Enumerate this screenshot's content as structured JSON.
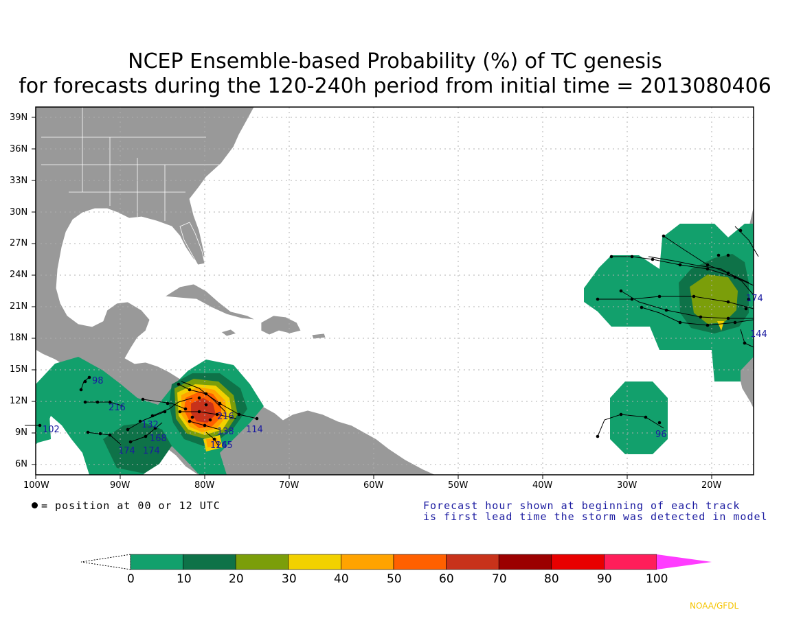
{
  "title": {
    "line1": "NCEP Ensemble-based Probability (%) of TC genesis",
    "line2": "for forecasts during the 120-240h period from initial time = 2013080406"
  },
  "map": {
    "lat_labels": [
      "39N",
      "36N",
      "33N",
      "30N",
      "27N",
      "24N",
      "21N",
      "18N",
      "15N",
      "12N",
      "9N",
      "6N"
    ],
    "lon_labels": [
      "100W",
      "90W",
      "80W",
      "70W",
      "60W",
      "50W",
      "40W",
      "30W",
      "20W"
    ]
  },
  "legend": {
    "position_note": "= position at 00 or 12 UTC",
    "forecast_note_line1": "Forecast hour shown at beginning of each track",
    "forecast_note_line2": "is first lead time the storm was detected in model"
  },
  "colorbar": {
    "labels": [
      "0",
      "10",
      "20",
      "30",
      "40",
      "50",
      "60",
      "70",
      "80",
      "90",
      "100"
    ],
    "colors": [
      "#12a06c",
      "#0e7248",
      "#7b9e0a",
      "#f2d100",
      "#ffa300",
      "#ff6000",
      "#c8321a",
      "#9b0000",
      "#e80000",
      "#ff1e5a",
      "#ff3cff"
    ]
  },
  "track_labels": [
    {
      "text": "98"
    },
    {
      "text": "216"
    },
    {
      "text": "102"
    },
    {
      "text": "174"
    },
    {
      "text": "174"
    },
    {
      "text": "168"
    },
    {
      "text": "132"
    },
    {
      "text": "114"
    },
    {
      "text": "138"
    },
    {
      "text": "126"
    },
    {
      "text": "145"
    },
    {
      "text": "144"
    },
    {
      "text": "174"
    },
    {
      "text": "96"
    },
    {
      "text": "216"
    }
  ],
  "credit": "NOAA/GFDL",
  "colors": {
    "land": "#999999",
    "ocean": "#ffffff",
    "track_label": "#1a1aa0",
    "note_text": "#1a1aa0"
  }
}
